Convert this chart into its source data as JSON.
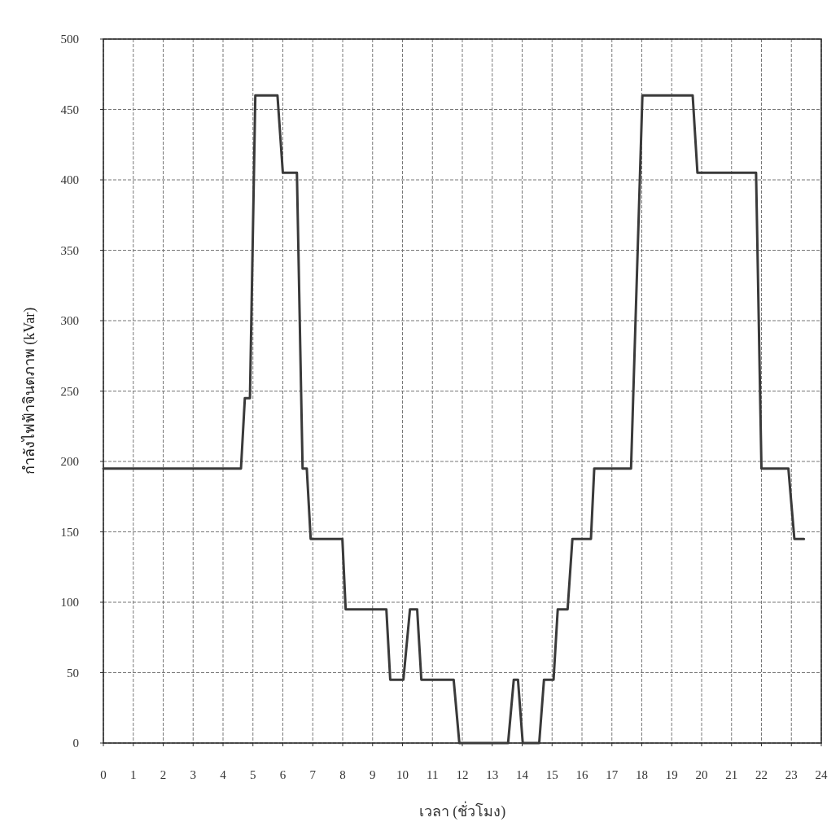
{
  "chart_data": {
    "type": "line",
    "xlabel": "เวลา (ชั่วโมง)",
    "ylabel": "กำลังไฟฟ้าจินตภาพ (kVar)",
    "xlim": [
      0,
      24
    ],
    "ylim": [
      0,
      500
    ],
    "xticks": [
      0,
      1,
      2,
      3,
      4,
      5,
      6,
      7,
      8,
      9,
      10,
      11,
      12,
      13,
      14,
      15,
      16,
      17,
      18,
      19,
      20,
      21,
      22,
      23,
      24
    ],
    "yticks": [
      0,
      50,
      100,
      150,
      200,
      250,
      300,
      350,
      400,
      450,
      500
    ],
    "grid": true,
    "series": [
      {
        "color": "#3a3a3a",
        "x": [
          0,
          4.6,
          4.73,
          4.9,
          5.08,
          5.82,
          6.0,
          6.47,
          6.66,
          6.8,
          6.93,
          7.99,
          8.1,
          9.46,
          9.59,
          10.03,
          10.25,
          10.49,
          10.63,
          11.71,
          11.9,
          13.53,
          13.72,
          13.86,
          14.02,
          14.57,
          14.73,
          15.05,
          15.19,
          15.52,
          15.68,
          16.3,
          16.41,
          17.64,
          18.02,
          19.7,
          19.86,
          21.82,
          22.0,
          22.9,
          23.1,
          23.42
        ],
        "values": [
          195,
          195,
          245,
          245,
          460,
          460,
          405,
          405,
          195,
          195,
          145,
          145,
          95,
          95,
          45,
          45,
          95,
          95,
          45,
          45,
          0,
          0,
          45,
          45,
          0,
          0,
          45,
          45,
          95,
          95,
          145,
          145,
          195,
          195,
          460,
          460,
          405,
          405,
          195,
          195,
          145,
          145
        ]
      }
    ]
  }
}
